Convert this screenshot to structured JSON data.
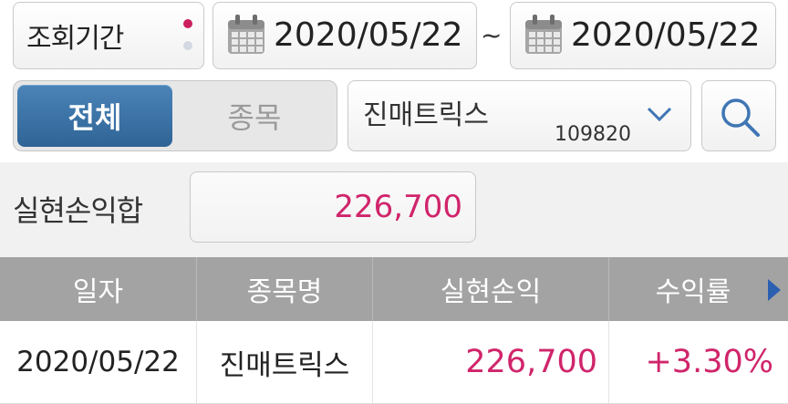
{
  "filter": {
    "period_label": "조회기간",
    "date_from": "2020/05/22",
    "date_separator": "~",
    "date_to": "2020/05/22",
    "calendar_icon": "calendar-icon"
  },
  "mode_tabs": {
    "all_label": "전체",
    "stock_label": "종목",
    "selected": "전체"
  },
  "stock_select": {
    "name": "진매트릭스",
    "code": "109820"
  },
  "search_icon": "search-icon",
  "summary": {
    "label": "실현손익합",
    "value": "226,700"
  },
  "table": {
    "headers": [
      "일자",
      "종목명",
      "실현손익",
      "수익률"
    ],
    "rows": [
      {
        "date": "2020/05/22",
        "name": "진매트릭스",
        "pl": "226,700",
        "ret": "+3.30%"
      }
    ]
  },
  "colors": {
    "accent_red": "#d0256b",
    "active_tab": "#3a72a8",
    "header_gray": "#a3a3a3",
    "arrow_blue": "#2b5fb0"
  }
}
